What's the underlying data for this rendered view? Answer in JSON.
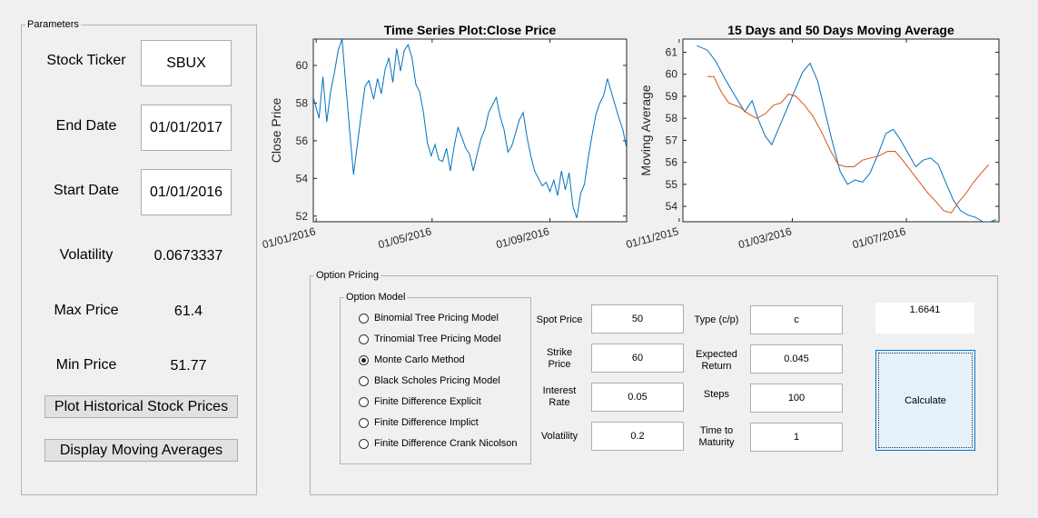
{
  "parameters": {
    "title": "Parameters",
    "stock_ticker_label": "Stock Ticker",
    "stock_ticker_value": "SBUX",
    "end_date_label": "End Date",
    "end_date_value": "01/01/2017",
    "start_date_label": "Start Date",
    "start_date_value": "01/01/2016",
    "volatility_label": "Volatility",
    "volatility_value": "0.0673337",
    "max_price_label": "Max Price",
    "max_price_value": "61.4",
    "min_price_label": "Min Price",
    "min_price_value": "51.77",
    "plot_button": "Plot Historical Stock Prices",
    "moving_avg_button": "Display Moving Averages"
  },
  "option_pricing": {
    "title": "Option Pricing",
    "model_group_title": "Option Model",
    "models": [
      {
        "label": "Binomial Tree Pricing Model",
        "selected": false
      },
      {
        "label": "Trinomial Tree Pricing Model",
        "selected": false
      },
      {
        "label": "Monte Carlo Method",
        "selected": true
      },
      {
        "label": "Black Scholes Pricing Model",
        "selected": false
      },
      {
        "label": "Finite Difference Explicit",
        "selected": false
      },
      {
        "label": "Finite Difference Implict",
        "selected": false
      },
      {
        "label": "Finite Difference Crank Nicolson",
        "selected": false
      }
    ],
    "spot_price_label": "Spot Price",
    "spot_price_value": "50",
    "strike_price_label_1": "Strike",
    "strike_price_label_2": "Price",
    "strike_price_value": "60",
    "interest_rate_label_1": "Interest",
    "interest_rate_label_2": "Rate",
    "interest_rate_value": "0.05",
    "volatility_label": "Volatility",
    "volatility_value": "0.2",
    "type_label": "Type (c/p)",
    "type_value": "c",
    "expected_return_label_1": "Expected",
    "expected_return_label_2": "Return",
    "expected_return_value": "0.045",
    "steps_label": "Steps",
    "steps_value": "100",
    "time_to_maturity_label_1": "Time to",
    "time_to_maturity_label_2": "Maturity",
    "time_to_maturity_value": "1",
    "result_value": "1.6641",
    "calculate_button": "Calculate"
  },
  "colors": {
    "blue_series": "#0072bd",
    "orange_series": "#d95319",
    "button_highlight": "#e5f1fb"
  },
  "chart_data": [
    {
      "type": "line",
      "title": "Time Series Plot:Close Price",
      "ylabel": "Close Price",
      "xlabel": "",
      "ylim": [
        51.7,
        61.4
      ],
      "yticks": [
        52,
        54,
        56,
        58,
        60
      ],
      "x_tick_labels": [
        "01/01/2016",
        "01/05/2016",
        "01/09/2016"
      ],
      "x_tick_dates": [
        "2016-01-01",
        "2016-05-01",
        "2016-09-01"
      ],
      "series": [
        {
          "values": [
            {
              "date": "2015-12-29",
              "close": 58.3
            },
            {
              "date": "2016-01-04",
              "close": 57.2
            },
            {
              "date": "2016-01-08",
              "close": 59.4
            },
            {
              "date": "2016-01-12",
              "close": 57.0
            },
            {
              "date": "2016-01-16",
              "close": 58.6
            },
            {
              "date": "2016-01-20",
              "close": 59.6
            },
            {
              "date": "2016-01-24",
              "close": 60.8
            },
            {
              "date": "2016-01-28",
              "close": 61.4
            },
            {
              "date": "2016-02-01",
              "close": 58.9
            },
            {
              "date": "2016-02-05",
              "close": 56.5
            },
            {
              "date": "2016-02-09",
              "close": 54.2
            },
            {
              "date": "2016-02-13",
              "close": 55.8
            },
            {
              "date": "2016-02-17",
              "close": 57.4
            },
            {
              "date": "2016-02-21",
              "close": 58.9
            },
            {
              "date": "2016-02-25",
              "close": 59.2
            },
            {
              "date": "2016-03-01",
              "close": 58.2
            },
            {
              "date": "2016-03-05",
              "close": 59.3
            },
            {
              "date": "2016-03-09",
              "close": 58.5
            },
            {
              "date": "2016-03-13",
              "close": 59.8
            },
            {
              "date": "2016-03-17",
              "close": 60.4
            },
            {
              "date": "2016-03-21",
              "close": 59.1
            },
            {
              "date": "2016-03-25",
              "close": 60.9
            },
            {
              "date": "2016-03-29",
              "close": 59.7
            },
            {
              "date": "2016-04-02",
              "close": 60.8
            },
            {
              "date": "2016-04-06",
              "close": 61.1
            },
            {
              "date": "2016-04-10",
              "close": 60.4
            },
            {
              "date": "2016-04-14",
              "close": 59.0
            },
            {
              "date": "2016-04-18",
              "close": 58.6
            },
            {
              "date": "2016-04-22",
              "close": 57.5
            },
            {
              "date": "2016-04-26",
              "close": 55.9
            },
            {
              "date": "2016-04-30",
              "close": 55.2
            },
            {
              "date": "2016-05-04",
              "close": 55.8
            },
            {
              "date": "2016-05-08",
              "close": 55.0
            },
            {
              "date": "2016-05-12",
              "close": 54.9
            },
            {
              "date": "2016-05-16",
              "close": 55.6
            },
            {
              "date": "2016-05-20",
              "close": 54.4
            },
            {
              "date": "2016-05-24",
              "close": 55.7
            },
            {
              "date": "2016-05-28",
              "close": 56.7
            },
            {
              "date": "2016-06-01",
              "close": 56.2
            },
            {
              "date": "2016-06-05",
              "close": 55.6
            },
            {
              "date": "2016-06-09",
              "close": 55.3
            },
            {
              "date": "2016-06-13",
              "close": 54.4
            },
            {
              "date": "2016-06-17",
              "close": 55.3
            },
            {
              "date": "2016-06-21",
              "close": 56.1
            },
            {
              "date": "2016-06-25",
              "close": 56.6
            },
            {
              "date": "2016-06-29",
              "close": 57.5
            },
            {
              "date": "2016-07-03",
              "close": 57.9
            },
            {
              "date": "2016-07-07",
              "close": 58.3
            },
            {
              "date": "2016-07-11",
              "close": 57.3
            },
            {
              "date": "2016-07-15",
              "close": 56.6
            },
            {
              "date": "2016-07-19",
              "close": 55.4
            },
            {
              "date": "2016-07-23",
              "close": 55.7
            },
            {
              "date": "2016-07-27",
              "close": 56.4
            },
            {
              "date": "2016-07-31",
              "close": 57.1
            },
            {
              "date": "2016-08-04",
              "close": 57.5
            },
            {
              "date": "2016-08-08",
              "close": 56.2
            },
            {
              "date": "2016-08-12",
              "close": 55.2
            },
            {
              "date": "2016-08-16",
              "close": 54.4
            },
            {
              "date": "2016-08-20",
              "close": 54.0
            },
            {
              "date": "2016-08-24",
              "close": 53.6
            },
            {
              "date": "2016-08-28",
              "close": 53.8
            },
            {
              "date": "2016-09-01",
              "close": 53.3
            },
            {
              "date": "2016-09-05",
              "close": 53.9
            },
            {
              "date": "2016-09-09",
              "close": 53.1
            },
            {
              "date": "2016-09-13",
              "close": 54.4
            },
            {
              "date": "2016-09-17",
              "close": 53.4
            },
            {
              "date": "2016-09-21",
              "close": 54.3
            },
            {
              "date": "2016-09-25",
              "close": 52.5
            },
            {
              "date": "2016-09-29",
              "close": 51.9
            },
            {
              "date": "2016-10-03",
              "close": 53.2
            },
            {
              "date": "2016-10-07",
              "close": 53.7
            },
            {
              "date": "2016-10-11",
              "close": 55.1
            },
            {
              "date": "2016-10-15",
              "close": 56.3
            },
            {
              "date": "2016-10-19",
              "close": 57.4
            },
            {
              "date": "2016-10-23",
              "close": 58.0
            },
            {
              "date": "2016-10-27",
              "close": 58.4
            },
            {
              "date": "2016-10-31",
              "close": 59.3
            },
            {
              "date": "2016-11-04",
              "close": 58.6
            },
            {
              "date": "2016-11-08",
              "close": 57.9
            },
            {
              "date": "2016-11-12",
              "close": 57.2
            },
            {
              "date": "2016-11-16",
              "close": 56.6
            },
            {
              "date": "2016-11-20",
              "close": 55.6
            }
          ]
        }
      ]
    },
    {
      "type": "line",
      "title": "15 Days and 50 Days Moving Average",
      "ylabel": "Moving Average",
      "xlabel": "",
      "ylim": [
        53.3,
        61.6
      ],
      "yticks": [
        54,
        55,
        56,
        57,
        58,
        59,
        60,
        61
      ],
      "x_tick_labels": [
        "01/11/2015",
        "01/03/2016",
        "01/07/2016"
      ],
      "x_tick_dates": [
        "2015-11-01",
        "2016-03-01",
        "2016-07-01"
      ],
      "series": [
        {
          "color": "#0072bd",
          "values": [
            {
              "date": "2015-11-20",
              "value": 61.3
            },
            {
              "date": "2015-12-01",
              "value": 61.1
            },
            {
              "date": "2015-12-10",
              "value": 60.6
            },
            {
              "date": "2015-12-20",
              "value": 59.8
            },
            {
              "date": "2015-12-31",
              "value": 59.0
            },
            {
              "date": "2016-01-10",
              "value": 58.3
            },
            {
              "date": "2016-01-18",
              "value": 58.8
            },
            {
              "date": "2016-01-25",
              "value": 57.9
            },
            {
              "date": "2016-02-01",
              "value": 57.2
            },
            {
              "date": "2016-02-08",
              "value": 56.8
            },
            {
              "date": "2016-02-16",
              "value": 57.6
            },
            {
              "date": "2016-02-24",
              "value": 58.4
            },
            {
              "date": "2016-03-03",
              "value": 59.2
            },
            {
              "date": "2016-03-12",
              "value": 60.1
            },
            {
              "date": "2016-03-20",
              "value": 60.5
            },
            {
              "date": "2016-03-28",
              "value": 59.7
            },
            {
              "date": "2016-04-05",
              "value": 58.3
            },
            {
              "date": "2016-04-13",
              "value": 56.9
            },
            {
              "date": "2016-04-21",
              "value": 55.6
            },
            {
              "date": "2016-04-29",
              "value": 55.0
            },
            {
              "date": "2016-05-07",
              "value": 55.2
            },
            {
              "date": "2016-05-15",
              "value": 55.1
            },
            {
              "date": "2016-05-23",
              "value": 55.5
            },
            {
              "date": "2016-06-01",
              "value": 56.4
            },
            {
              "date": "2016-06-09",
              "value": 57.3
            },
            {
              "date": "2016-06-17",
              "value": 57.5
            },
            {
              "date": "2016-06-25",
              "value": 57.0
            },
            {
              "date": "2016-07-03",
              "value": 56.4
            },
            {
              "date": "2016-07-11",
              "value": 55.8
            },
            {
              "date": "2016-07-19",
              "value": 56.1
            },
            {
              "date": "2016-07-27",
              "value": 56.2
            },
            {
              "date": "2016-08-04",
              "value": 55.9
            },
            {
              "date": "2016-08-12",
              "value": 55.1
            },
            {
              "date": "2016-08-20",
              "value": 54.3
            },
            {
              "date": "2016-08-28",
              "value": 53.8
            },
            {
              "date": "2016-09-05",
              "value": 53.6
            },
            {
              "date": "2016-09-13",
              "value": 53.5
            },
            {
              "date": "2016-09-21",
              "value": 53.3
            },
            {
              "date": "2016-09-29",
              "value": 53.3
            },
            {
              "date": "2016-10-05",
              "value": 53.4
            }
          ]
        },
        {
          "color": "#d95319",
          "values": [
            {
              "date": "2015-12-01",
              "value": 59.9
            },
            {
              "date": "2015-12-08",
              "value": 59.9
            },
            {
              "date": "2015-12-16",
              "value": 59.2
            },
            {
              "date": "2015-12-24",
              "value": 58.7
            },
            {
              "date": "2016-01-05",
              "value": 58.5
            },
            {
              "date": "2016-01-14",
              "value": 58.2
            },
            {
              "date": "2016-01-23",
              "value": 58.0
            },
            {
              "date": "2016-02-01",
              "value": 58.2
            },
            {
              "date": "2016-02-10",
              "value": 58.6
            },
            {
              "date": "2016-02-18",
              "value": 58.7
            },
            {
              "date": "2016-02-26",
              "value": 59.1
            },
            {
              "date": "2016-03-05",
              "value": 59.0
            },
            {
              "date": "2016-03-14",
              "value": 58.6
            },
            {
              "date": "2016-03-23",
              "value": 58.1
            },
            {
              "date": "2016-04-01",
              "value": 57.4
            },
            {
              "date": "2016-04-10",
              "value": 56.6
            },
            {
              "date": "2016-04-19",
              "value": 55.9
            },
            {
              "date": "2016-04-27",
              "value": 55.8
            },
            {
              "date": "2016-05-06",
              "value": 55.8
            },
            {
              "date": "2016-05-15",
              "value": 56.1
            },
            {
              "date": "2016-05-24",
              "value": 56.2
            },
            {
              "date": "2016-06-02",
              "value": 56.3
            },
            {
              "date": "2016-06-11",
              "value": 56.5
            },
            {
              "date": "2016-06-19",
              "value": 56.5
            },
            {
              "date": "2016-06-27",
              "value": 56.1
            },
            {
              "date": "2016-07-06",
              "value": 55.6
            },
            {
              "date": "2016-07-15",
              "value": 55.1
            },
            {
              "date": "2016-07-24",
              "value": 54.6
            },
            {
              "date": "2016-08-02",
              "value": 54.2
            },
            {
              "date": "2016-08-10",
              "value": 53.8
            },
            {
              "date": "2016-08-18",
              "value": 53.7
            },
            {
              "date": "2016-08-26",
              "value": 54.2
            },
            {
              "date": "2016-09-03",
              "value": 54.6
            },
            {
              "date": "2016-09-11",
              "value": 55.1
            },
            {
              "date": "2016-09-19",
              "value": 55.5
            },
            {
              "date": "2016-09-27",
              "value": 55.9
            }
          ]
        }
      ]
    }
  ]
}
